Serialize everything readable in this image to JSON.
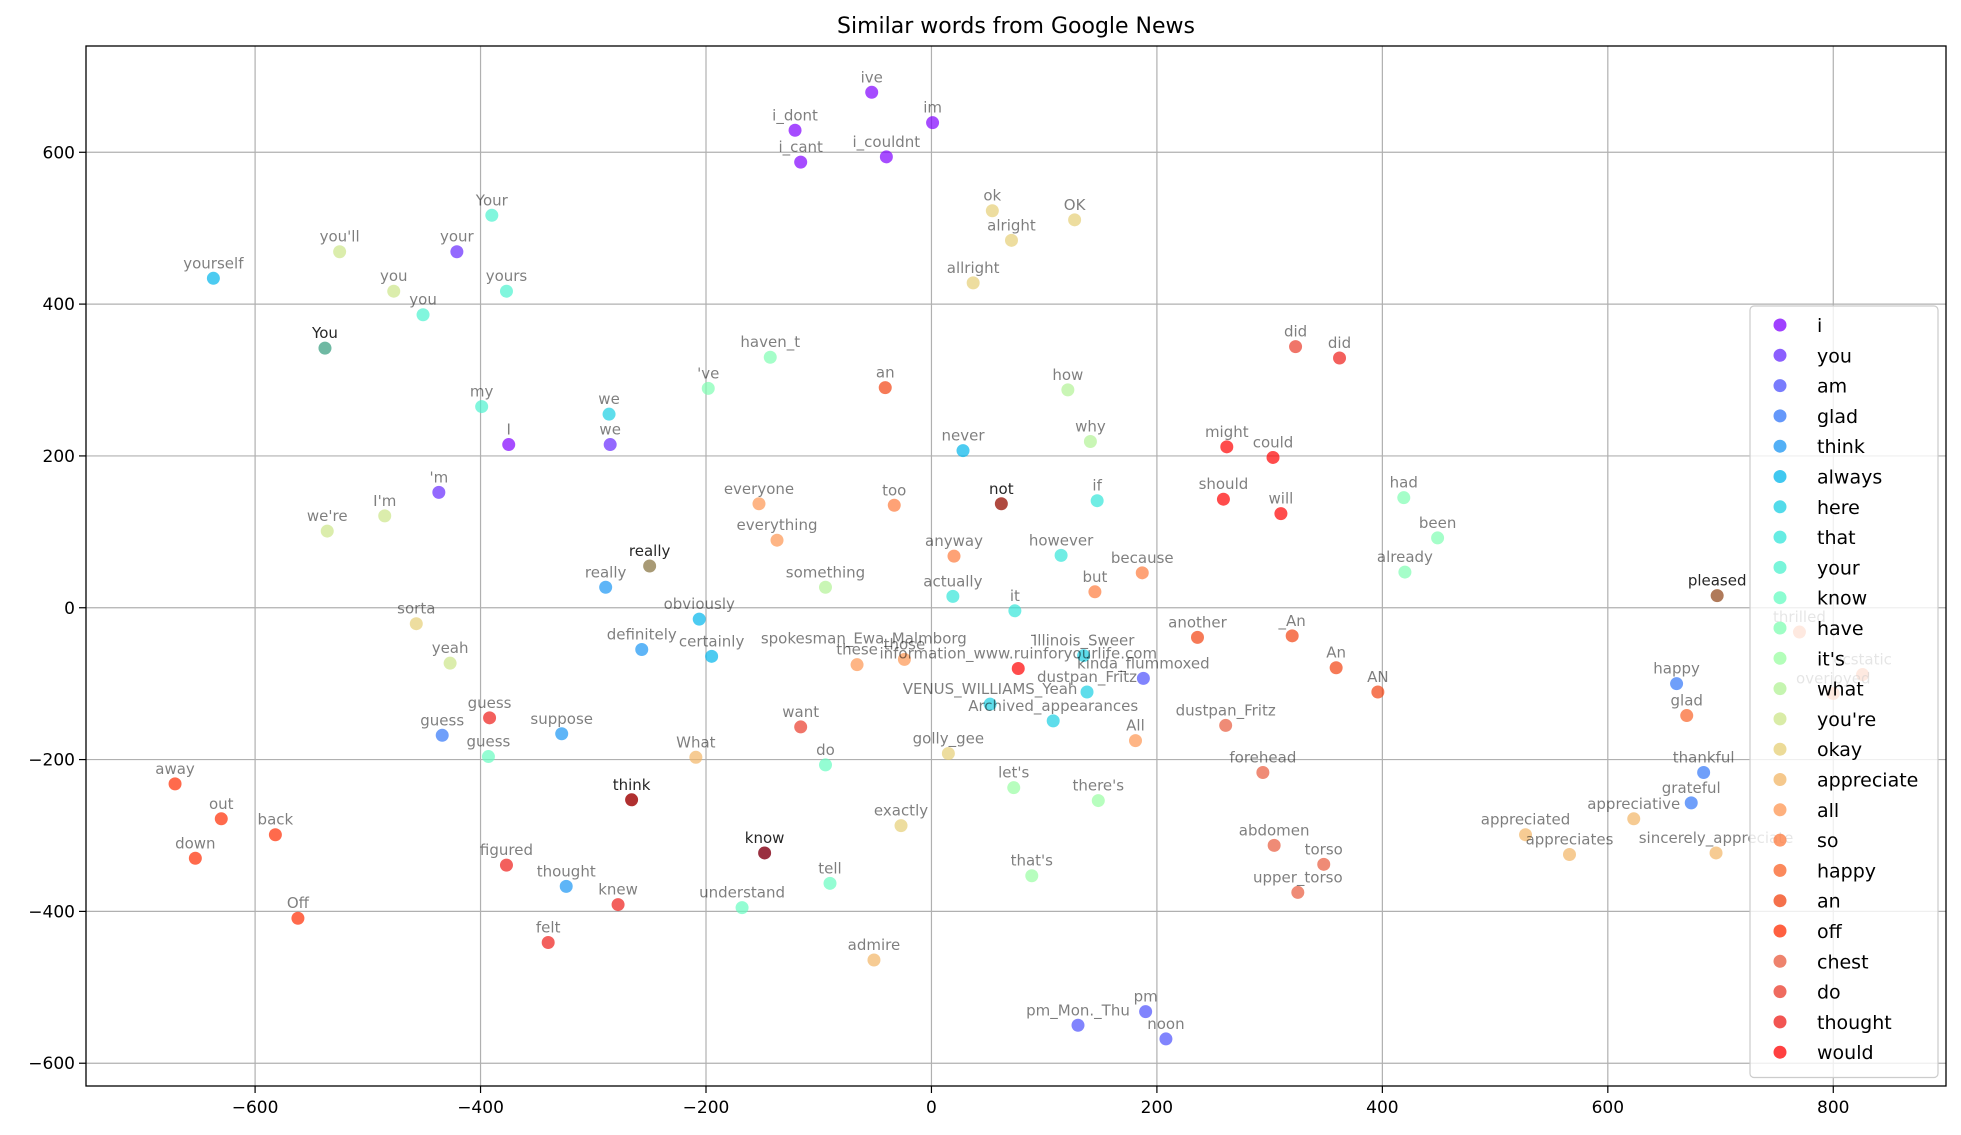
{
  "chart_data": {
    "type": "scatter",
    "title": "Similar words from Google News",
    "xlabel": "",
    "ylabel": "",
    "xlim": [
      -750,
      900
    ],
    "ylim": [
      -630,
      740
    ],
    "xticks": [
      -600,
      -400,
      -200,
      0,
      200,
      400,
      600,
      800
    ],
    "yticks": [
      -600,
      -400,
      -200,
      0,
      200,
      400,
      600
    ],
    "grid": true,
    "legend_position": "right",
    "series": [
      {
        "name": "i",
        "color": "#8000ff",
        "points": [
          {
            "label": "ive",
            "x": -53,
            "y": 679
          },
          {
            "label": "i_dont",
            "x": -121,
            "y": 629
          },
          {
            "label": "im",
            "x": 1,
            "y": 639
          },
          {
            "label": "i_cant",
            "x": -116,
            "y": 587
          },
          {
            "label": "i_couldnt",
            "x": -40,
            "y": 594
          },
          {
            "label": "I",
            "x": -375,
            "y": 215
          }
        ]
      },
      {
        "name": "you",
        "color": "#6629fe",
        "points": [
          {
            "label": "your",
            "x": -421,
            "y": 469
          },
          {
            "label": "we",
            "x": -285,
            "y": 215
          },
          {
            "label": "'m",
            "x": -437,
            "y": 152
          }
        ]
      },
      {
        "name": "am",
        "color": "#4c50fc",
        "points": [
          {
            "label": "pm",
            "x": 190,
            "y": -532
          },
          {
            "label": "pm_Mon._Thu",
            "x": 130,
            "y": -550
          },
          {
            "label": "noon",
            "x": 208,
            "y": -568
          },
          {
            "label": "kinda_flummoxed",
            "x": 188,
            "y": -93
          }
        ]
      },
      {
        "name": "glad",
        "color": "#3276f8",
        "points": [
          {
            "label": "happy",
            "x": 661,
            "y": -100
          },
          {
            "label": "thankful",
            "x": 685,
            "y": -217
          },
          {
            "label": "grateful",
            "x": 674,
            "y": -257
          },
          {
            "label": "guess",
            "x": -434,
            "y": -168
          }
        ]
      },
      {
        "name": "think",
        "color": "#1996f3",
        "points": [
          {
            "label": "suppose",
            "x": -328,
            "y": -166
          },
          {
            "label": "thought",
            "x": -324,
            "y": -367
          },
          {
            "label": "really",
            "x": -289,
            "y": 27
          },
          {
            "label": "definitely",
            "x": -257,
            "y": -55
          }
        ]
      },
      {
        "name": "always",
        "color": "#00b5eb",
        "points": [
          {
            "label": "yourself",
            "x": -637,
            "y": 434
          },
          {
            "label": "never",
            "x": 28,
            "y": 207
          },
          {
            "label": "obviously",
            "x": -206,
            "y": -15
          },
          {
            "label": "certainly",
            "x": -195,
            "y": -64
          }
        ]
      },
      {
        "name": "here",
        "color": "#1acfe3",
        "points": [
          {
            "label": "we",
            "x": -286,
            "y": 255
          },
          {
            "label": "Illinois_Sweer",
            "x": 135,
            "y": -63
          },
          {
            "label": "VENUS_WILLIAMS_Yeah",
            "x": 52,
            "y": -127
          },
          {
            "label": "Archived_appearances",
            "x": 108,
            "y": -149
          },
          {
            "label": "dustpan_Fritz",
            "x": 138,
            "y": -111
          }
        ]
      },
      {
        "name": "that",
        "color": "#33e5d9",
        "points": [
          {
            "label": "if",
            "x": 147,
            "y": 141
          },
          {
            "label": "however",
            "x": 115,
            "y": 69
          },
          {
            "label": "it",
            "x": 74,
            "y": -4
          },
          {
            "label": "actually",
            "x": 19,
            "y": 15
          }
        ]
      },
      {
        "name": "your",
        "color": "#4cf2ce",
        "points": [
          {
            "label": "Your",
            "x": -390,
            "y": 517
          },
          {
            "label": "yours",
            "x": -377,
            "y": 417
          },
          {
            "label": "you",
            "x": -451,
            "y": 386
          },
          {
            "label": "my",
            "x": -399,
            "y": 265
          }
        ]
      },
      {
        "name": "know",
        "color": "#66fcc1",
        "points": [
          {
            "label": "guess",
            "x": -393,
            "y": -196
          },
          {
            "label": "do",
            "x": -94,
            "y": -207
          },
          {
            "label": "tell",
            "x": -90,
            "y": -363
          },
          {
            "label": "understand",
            "x": -168,
            "y": -395
          }
        ]
      },
      {
        "name": "have",
        "color": "#7ffeb2",
        "points": [
          {
            "label": "haven_t",
            "x": -143,
            "y": 330
          },
          {
            "label": "'ve",
            "x": -198,
            "y": 289
          },
          {
            "label": "had",
            "x": 419,
            "y": 145
          },
          {
            "label": "been",
            "x": 449,
            "y": 92
          },
          {
            "label": "already",
            "x": 420,
            "y": 47
          }
        ]
      },
      {
        "name": "it's",
        "color": "#99fda2",
        "points": [
          {
            "label": "let's",
            "x": 73,
            "y": -237
          },
          {
            "label": "there's",
            "x": 148,
            "y": -254
          },
          {
            "label": "that's",
            "x": 89,
            "y": -353
          }
        ]
      },
      {
        "name": "what",
        "color": "#b2f295",
        "points": [
          {
            "label": "how",
            "x": 121,
            "y": 287
          },
          {
            "label": "why",
            "x": 141,
            "y": 219
          },
          {
            "label": "something",
            "x": -94,
            "y": 27
          }
        ]
      },
      {
        "name": "you're",
        "color": "#cce589",
        "points": [
          {
            "label": "you'll",
            "x": -525,
            "y": 469
          },
          {
            "label": "you",
            "x": -477,
            "y": 417
          },
          {
            "label": "I'm",
            "x": -485,
            "y": 121
          },
          {
            "label": "we're",
            "x": -536,
            "y": 101
          },
          {
            "label": "yeah",
            "x": -427,
            "y": -73
          }
        ]
      },
      {
        "name": "okay",
        "color": "#e5cf76",
        "points": [
          {
            "label": "ok",
            "x": 54,
            "y": 523
          },
          {
            "label": "OK",
            "x": 127,
            "y": 511
          },
          {
            "label": "alright",
            "x": 71,
            "y": 484
          },
          {
            "label": "allright",
            "x": 37,
            "y": 428
          },
          {
            "label": "sorta",
            "x": -457,
            "y": -21
          },
          {
            "label": "golly_gee",
            "x": 15,
            "y": -192
          },
          {
            "label": "exactly",
            "x": -27,
            "y": -287
          }
        ]
      },
      {
        "name": "appreciate",
        "color": "#f2b565",
        "points": [
          {
            "label": "appreciated",
            "x": 527,
            "y": -299
          },
          {
            "label": "appreciates",
            "x": 566,
            "y": -325
          },
          {
            "label": "appreciative",
            "x": 623,
            "y": -278
          },
          {
            "label": "sincerely_appreciate",
            "x": 696,
            "y": -323
          },
          {
            "label": "admire",
            "x": -51,
            "y": -464
          },
          {
            "label": "What",
            "x": -209,
            "y": -197
          }
        ]
      },
      {
        "name": "all",
        "color": "#fe9651",
        "points": [
          {
            "label": "everyone",
            "x": -153,
            "y": 137
          },
          {
            "label": "everything",
            "x": -137,
            "y": 89
          },
          {
            "label": "those",
            "x": -24,
            "y": -68
          },
          {
            "label": "these",
            "x": -66,
            "y": -75
          },
          {
            "label": "All",
            "x": 181,
            "y": -175
          }
        ]
      },
      {
        "name": "so",
        "color": "#fd7a3c",
        "points": [
          {
            "label": "too",
            "x": -33,
            "y": 135
          },
          {
            "label": "anyway",
            "x": 20,
            "y": 68
          },
          {
            "label": "because",
            "x": 187,
            "y": 46
          },
          {
            "label": "but",
            "x": 145,
            "y": 21
          }
        ]
      },
      {
        "name": "happy",
        "color": "#f96226",
        "points": [
          {
            "label": "glad",
            "x": 670,
            "y": -142
          },
          {
            "label": "thrilled",
            "x": 770,
            "y": -32
          },
          {
            "label": "ecstatic",
            "x": 826,
            "y": -88
          },
          {
            "label": "overjoyed",
            "x": 800,
            "y": -113
          }
        ]
      },
      {
        "name": "an",
        "color": "#f2410f",
        "points": [
          {
            "label": "an",
            "x": -41,
            "y": 290
          },
          {
            "label": "another",
            "x": 236,
            "y": -39
          },
          {
            "label": "_An",
            "x": 320,
            "y": -37
          },
          {
            "label": "An",
            "x": 359,
            "y": -79
          },
          {
            "label": "AN",
            "x": 396,
            "y": -111
          }
        ]
      },
      {
        "name": "off",
        "color": "#ff2b00",
        "points": [
          {
            "label": "away",
            "x": -671,
            "y": -232
          },
          {
            "label": "out",
            "x": -630,
            "y": -278
          },
          {
            "label": "back",
            "x": -582,
            "y": -299
          },
          {
            "label": "down",
            "x": -653,
            "y": -330
          },
          {
            "label": "Off",
            "x": -562,
            "y": -409
          }
        ]
      },
      {
        "name": "chest",
        "color": "#e85a3c",
        "points": [
          {
            "label": "forehead",
            "x": 294,
            "y": -217
          },
          {
            "label": "abdomen",
            "x": 304,
            "y": -313
          },
          {
            "label": "torso",
            "x": 348,
            "y": -338
          },
          {
            "label": "upper_torso",
            "x": 325,
            "y": -375
          },
          {
            "label": "dustpan_Fritz",
            "x": 261,
            "y": -155
          }
        ]
      },
      {
        "name": "do",
        "color": "#ea3a2a",
        "points": [
          {
            "label": "did",
            "x": 323,
            "y": 344
          },
          {
            "label": "want",
            "x": -116,
            "y": -157
          }
        ]
      },
      {
        "name": "thought",
        "color": "#ee1c18",
        "points": [
          {
            "label": "figured",
            "x": -377,
            "y": -339
          },
          {
            "label": "knew",
            "x": -278,
            "y": -391
          },
          {
            "label": "felt",
            "x": -340,
            "y": -441
          },
          {
            "label": "guess",
            "x": -392,
            "y": -145
          },
          {
            "label": "did",
            "x": 362,
            "y": 329
          }
        ]
      },
      {
        "name": "would",
        "color": "#ff0000",
        "points": [
          {
            "label": "might",
            "x": 262,
            "y": 212
          },
          {
            "label": "could",
            "x": 303,
            "y": 198
          },
          {
            "label": "should",
            "x": 259,
            "y": 143
          },
          {
            "label": "will",
            "x": 310,
            "y": 124
          },
          {
            "label": "information_www.ruinforyourlife.com",
            "x": 77,
            "y": -80
          }
        ]
      }
    ],
    "query_points": [
      {
        "label": "You",
        "x": -538,
        "y": 342,
        "color": "#6fb9a3"
      },
      {
        "label": "really",
        "x": -250,
        "y": 55,
        "color": "#a89a75"
      },
      {
        "label": "not",
        "x": 62,
        "y": 137,
        "color": "#b04a40"
      },
      {
        "label": "think",
        "x": -266,
        "y": -253,
        "color": "#b03030"
      },
      {
        "label": "know",
        "x": -148,
        "y": -323,
        "color": "#9a3040"
      },
      {
        "label": "pleased",
        "x": 697,
        "y": 16,
        "color": "#b07a5a"
      }
    ],
    "overlay_labels": [
      {
        "text": "spokesman_Ewa_Malmborg",
        "x": -60,
        "y": -60
      },
      {
        "text": "-",
        "x": 90,
        "y": -55
      }
    ]
  }
}
